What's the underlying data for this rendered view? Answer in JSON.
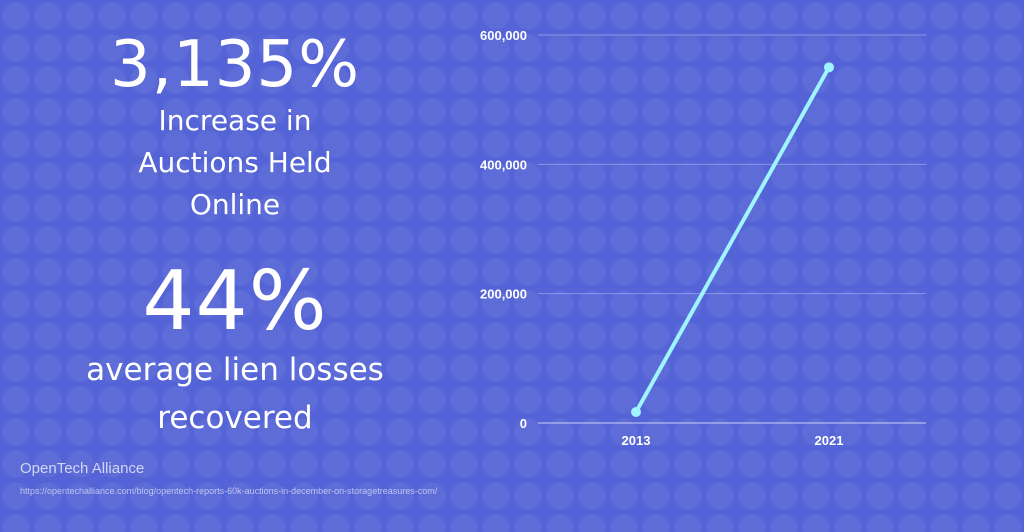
{
  "stat1": {
    "value": "3,135%",
    "description": "Increase in Auctions Held Online"
  },
  "stat2": {
    "value": "44%",
    "description": "average lien losses recovered"
  },
  "source": {
    "name": "OpenTech Alliance",
    "url": "https://opentechalliance.com/blog/opentech-reports-60k-auctions-in-december-on-storagetreasures-com/"
  },
  "colors": {
    "background": "#5463d6",
    "line": "#9ff4ff",
    "grid": "#8b95e6"
  },
  "chart_data": {
    "type": "line",
    "x": [
      "2013",
      "2021"
    ],
    "series": [
      {
        "values": [
          17000,
          550000
        ]
      }
    ],
    "ylim": [
      0,
      600000
    ],
    "yticks": [
      0,
      200000,
      400000,
      600000
    ],
    "ytick_labels": [
      "0",
      "200,000",
      "400,000",
      "600,000"
    ],
    "xlabel": "",
    "ylabel": "",
    "title": "",
    "grid": true,
    "legend": "none"
  }
}
